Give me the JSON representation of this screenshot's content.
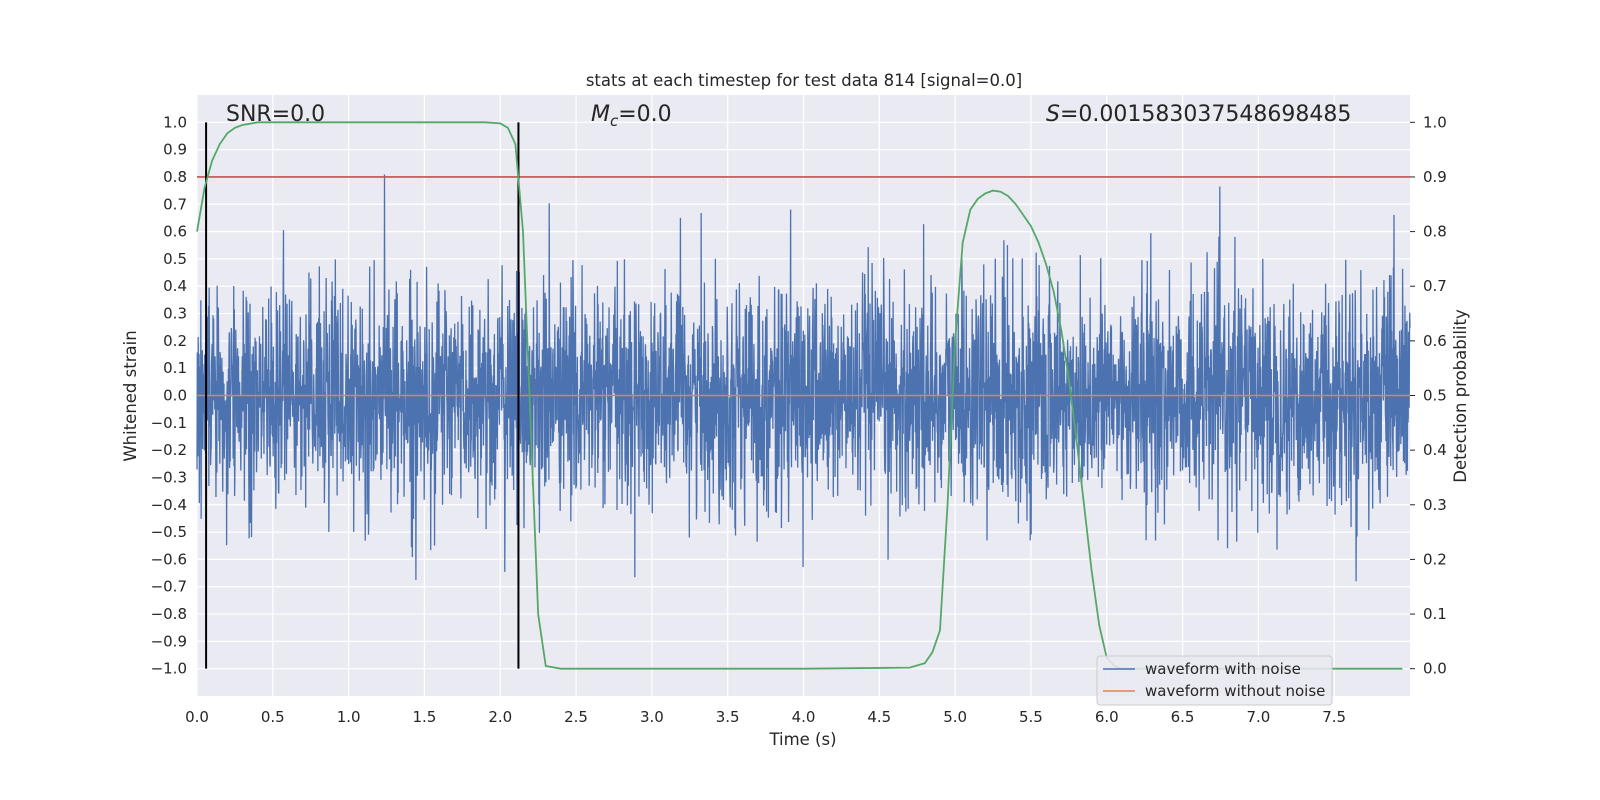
{
  "chart_data": {
    "type": "line",
    "title": "stats at each timestep for test data 814 [signal=0.0]",
    "xlabel": "Time (s)",
    "ylabel": "Whitened strain",
    "ylabel_right": "Detection probability",
    "xlim": [
      0.0,
      8.0
    ],
    "ylim": [
      -1.1,
      1.1
    ],
    "ylim_right": [
      -0.05,
      1.05
    ],
    "x_ticks": [
      "0.0",
      "0.5",
      "1.0",
      "1.5",
      "2.0",
      "2.5",
      "3.0",
      "3.5",
      "4.0",
      "4.5",
      "5.0",
      "5.5",
      "6.0",
      "6.5",
      "7.0",
      "7.5"
    ],
    "y_ticks": [
      "1.0",
      "0.9",
      "0.8",
      "0.7",
      "0.6",
      "0.5",
      "0.4",
      "0.3",
      "0.2",
      "0.1",
      "0.0",
      "-0.1",
      "-0.2",
      "-0.3",
      "-0.4",
      "-0.5",
      "-0.6",
      "-0.7",
      "-0.8",
      "-0.9",
      "-1.0"
    ],
    "y_ticks_right": [
      "1.0",
      "0.9",
      "0.8",
      "0.7",
      "0.6",
      "0.5",
      "0.4",
      "0.3",
      "0.2",
      "0.1",
      "0.0"
    ],
    "grid": true,
    "annotations": {
      "snr": "SNR=0.0",
      "mc_symbol": "M",
      "mc_sub": "c",
      "mc_value": "=0.0",
      "s_symbol": "S",
      "s_value": "=0.001583037548698485"
    },
    "vertical_markers": [
      0.06,
      2.12
    ],
    "threshold": 0.9,
    "series": [
      {
        "name": "waveform with noise",
        "color": "#4c72b0",
        "description_points": "noisy strain, peaks mostly within ±0.6 with spikes to ±0.95",
        "x": [
          0.0,
          8.0
        ],
        "values_envelope": [
          -0.87,
          0.95
        ]
      },
      {
        "name": "waveform without noise",
        "color": "#dd8452",
        "x": [
          0.0,
          8.0
        ],
        "values": [
          0.0,
          0.0
        ]
      },
      {
        "name": "detection probability",
        "color": "#55a868",
        "axis": "right",
        "x": [
          0.0,
          0.05,
          0.1,
          0.15,
          0.2,
          0.25,
          0.3,
          0.4,
          0.6,
          1.0,
          1.5,
          1.9,
          2.0,
          2.05,
          2.1,
          2.15,
          2.2,
          2.25,
          2.3,
          2.4,
          3.0,
          4.0,
          4.7,
          4.8,
          4.85,
          4.9,
          4.95,
          5.0,
          5.05,
          5.1,
          5.15,
          5.2,
          5.25,
          5.3,
          5.35,
          5.4,
          5.5,
          5.55,
          5.6,
          5.65,
          5.7,
          5.75,
          5.8,
          5.85,
          5.9,
          5.95,
          6.0,
          6.05,
          6.1,
          7.0,
          7.95
        ],
        "values": [
          0.8,
          0.88,
          0.93,
          0.96,
          0.98,
          0.99,
          0.995,
          1.0,
          1.0,
          1.0,
          1.0,
          1.0,
          0.998,
          0.99,
          0.96,
          0.8,
          0.45,
          0.1,
          0.005,
          0.0,
          0.0,
          0.0,
          0.002,
          0.01,
          0.03,
          0.07,
          0.3,
          0.6,
          0.78,
          0.84,
          0.86,
          0.87,
          0.875,
          0.873,
          0.865,
          0.85,
          0.81,
          0.78,
          0.74,
          0.69,
          0.62,
          0.53,
          0.42,
          0.3,
          0.18,
          0.08,
          0.02,
          0.005,
          0.0,
          0.0,
          0.0
        ]
      }
    ],
    "legend": {
      "placement": "lower-right",
      "entries": [
        "waveform with noise",
        "waveform without noise"
      ]
    },
    "colors": {
      "background": "#eaeaf2",
      "grid": "#ffffff",
      "threshold": "#c44e52",
      "marker": "#000000"
    }
  }
}
